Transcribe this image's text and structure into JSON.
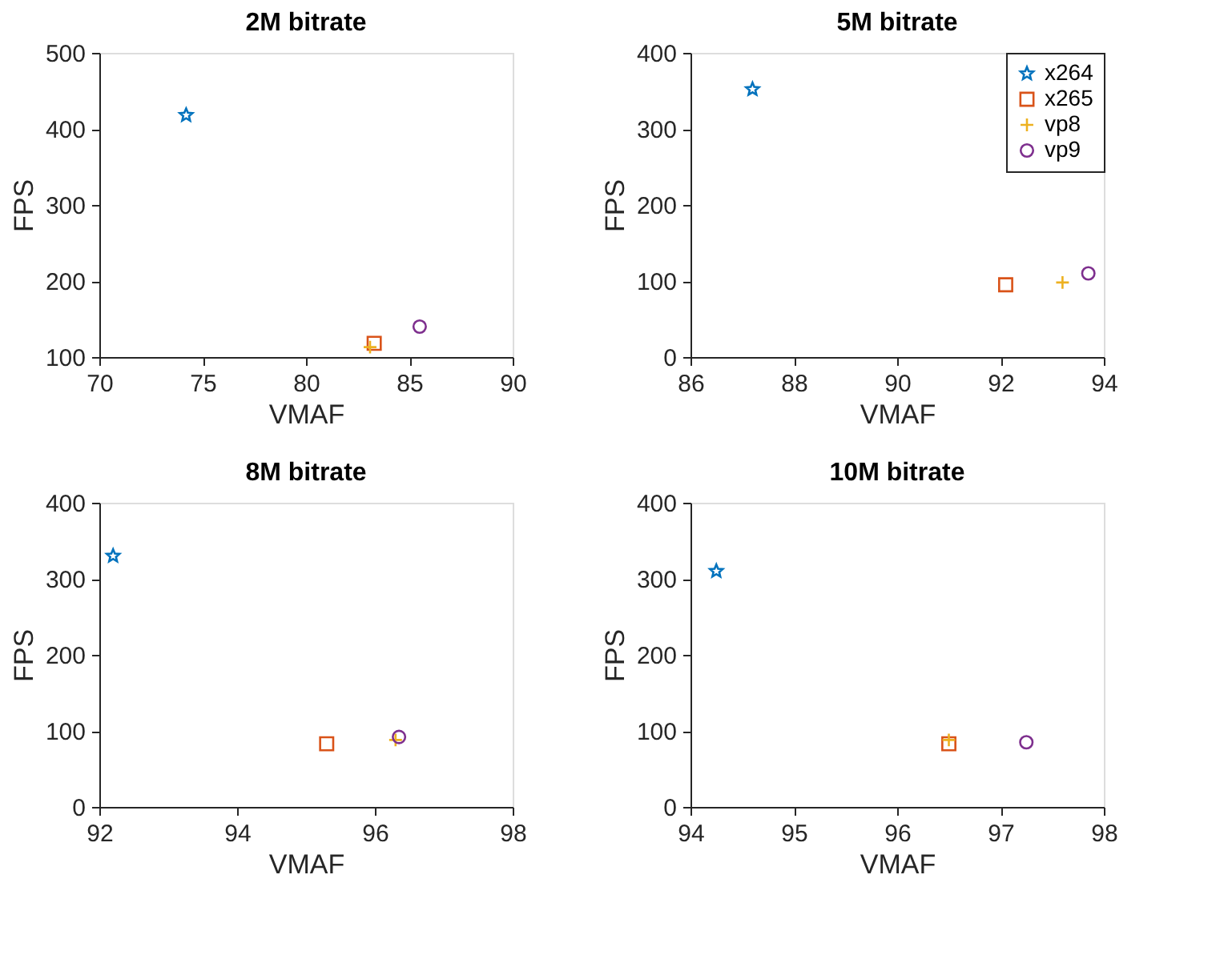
{
  "chart_data": [
    {
      "type": "scatter",
      "title": "2M bitrate",
      "xlabel": "VMAF",
      "ylabel": "FPS",
      "xlim": [
        70,
        90
      ],
      "xticks": [
        70,
        75,
        80,
        85,
        90
      ],
      "ylim": [
        100,
        500
      ],
      "yticks": [
        100,
        200,
        300,
        400,
        500
      ],
      "grid": false,
      "legend": false,
      "series": [
        {
          "color": "#0072bd",
          "marker": "star",
          "x": [
            74.2
          ],
          "values": [
            418
          ]
        },
        {
          "color": "#d95319",
          "marker": "square",
          "x": [
            83.3
          ],
          "values": [
            118
          ]
        },
        {
          "color": "#edb120",
          "marker": "cross",
          "x": [
            83.1
          ],
          "values": [
            113
          ]
        },
        {
          "color": "#7e2f8e",
          "marker": "circle",
          "x": [
            85.5
          ],
          "values": [
            140
          ]
        }
      ]
    },
    {
      "type": "scatter",
      "title": "5M bitrate",
      "xlabel": "VMAF",
      "ylabel": "FPS",
      "xlim": [
        86,
        94
      ],
      "xticks": [
        86,
        88,
        90,
        92,
        94
      ],
      "ylim": [
        0,
        400
      ],
      "yticks": [
        0,
        100,
        200,
        300,
        400
      ],
      "grid": false,
      "legend": "top right",
      "series": [
        {
          "name": "x264",
          "color": "#0072bd",
          "marker": "star",
          "x": [
            87.2
          ],
          "values": [
            352
          ]
        },
        {
          "name": "x265",
          "color": "#d95319",
          "marker": "square",
          "x": [
            92.1
          ],
          "values": [
            95
          ]
        },
        {
          "name": "vp8",
          "color": "#edb120",
          "marker": "cross",
          "x": [
            93.2
          ],
          "values": [
            98
          ]
        },
        {
          "name": "vp9",
          "color": "#7e2f8e",
          "marker": "circle",
          "x": [
            93.7
          ],
          "values": [
            110
          ]
        }
      ]
    },
    {
      "type": "scatter",
      "title": "8M bitrate",
      "xlabel": "VMAF",
      "ylabel": "FPS",
      "xlim": [
        92,
        98
      ],
      "xticks": [
        92,
        94,
        96,
        98
      ],
      "ylim": [
        0,
        400
      ],
      "yticks": [
        0,
        100,
        200,
        300,
        400
      ],
      "grid": false,
      "legend": false,
      "series": [
        {
          "color": "#0072bd",
          "marker": "star",
          "x": [
            92.2
          ],
          "values": [
            330
          ]
        },
        {
          "color": "#d95319",
          "marker": "square",
          "x": [
            95.3
          ],
          "values": [
            83
          ]
        },
        {
          "color": "#edb120",
          "marker": "cross",
          "x": [
            96.3
          ],
          "values": [
            88
          ]
        },
        {
          "color": "#7e2f8e",
          "marker": "circle",
          "x": [
            96.35
          ],
          "values": [
            92
          ]
        }
      ]
    },
    {
      "type": "scatter",
      "title": "10M bitrate",
      "xlabel": "VMAF",
      "ylabel": "FPS",
      "xlim": [
        94,
        98
      ],
      "xticks": [
        94,
        95,
        96,
        97,
        98
      ],
      "ylim": [
        0,
        400
      ],
      "yticks": [
        0,
        100,
        200,
        300,
        400
      ],
      "grid": false,
      "legend": false,
      "series": [
        {
          "color": "#0072bd",
          "marker": "star",
          "x": [
            94.25
          ],
          "values": [
            310
          ]
        },
        {
          "color": "#d95319",
          "marker": "square",
          "x": [
            96.5
          ],
          "values": [
            83
          ]
        },
        {
          "color": "#edb120",
          "marker": "cross",
          "x": [
            96.5
          ],
          "values": [
            88
          ]
        },
        {
          "color": "#7e2f8e",
          "marker": "circle",
          "x": [
            97.25
          ],
          "values": [
            85
          ]
        }
      ]
    }
  ]
}
